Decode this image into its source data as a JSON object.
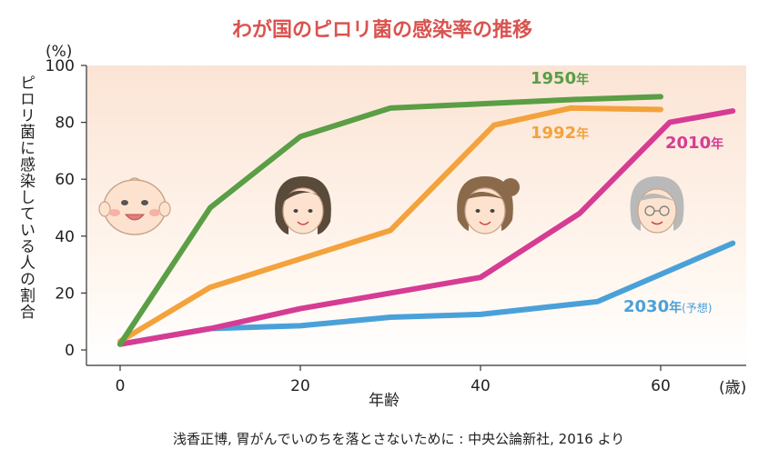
{
  "chart_data": {
    "type": "line",
    "title": "わが国のピロリ菌の感染率の推移",
    "xlabel": "年齢",
    "x_unit": "(歳)",
    "ylabel": "ピロリ菌に感染している人の割合",
    "y_unit": "(%)",
    "xlim": [
      -10,
      68
    ],
    "ylim": [
      -5,
      100
    ],
    "x_ticks": [
      "0",
      "20",
      "40",
      "60"
    ],
    "y_ticks": [
      "0",
      "20",
      "40",
      "60",
      "80",
      "100"
    ],
    "background": "gradient",
    "series": [
      {
        "name": "1950年",
        "name_main": "1950",
        "name_suffix": "年",
        "color": "#5a9e45",
        "x": [
          0,
          10,
          20,
          30,
          40,
          50,
          60
        ],
        "y": [
          2,
          50,
          75,
          85,
          86.5,
          88,
          89
        ]
      },
      {
        "name": "1992年",
        "name_main": "1992",
        "name_suffix": "年",
        "color": "#f3a23c",
        "x": [
          0,
          10,
          20,
          30,
          41.5,
          50,
          60
        ],
        "y": [
          3,
          22,
          32,
          42,
          79,
          85,
          84.5
        ]
      },
      {
        "name": "2010年",
        "name_main": "2010",
        "name_suffix": "年",
        "color": "#d63c94",
        "x": [
          0,
          10,
          20,
          30,
          40,
          51,
          61,
          68
        ],
        "y": [
          2,
          7.5,
          14.5,
          20,
          25.5,
          48,
          80,
          84
        ]
      },
      {
        "name": "2030年(予想)",
        "name_main": "2030",
        "name_suffix": "年",
        "name_note": "(予想)",
        "color": "#4aa1d9",
        "x": [
          0,
          10,
          20,
          30,
          40,
          53,
          68
        ],
        "y": [
          2,
          7.5,
          8.5,
          11.5,
          12.5,
          17,
          37.5
        ]
      }
    ],
    "icons": [
      "baby-face-icon",
      "young-woman-face-icon",
      "woman-face-icon",
      "elderly-woman-face-icon"
    ],
    "source": "浅香正博, 胃がんでいのちを落とさないために : 中央公論新社, 2016 より"
  }
}
